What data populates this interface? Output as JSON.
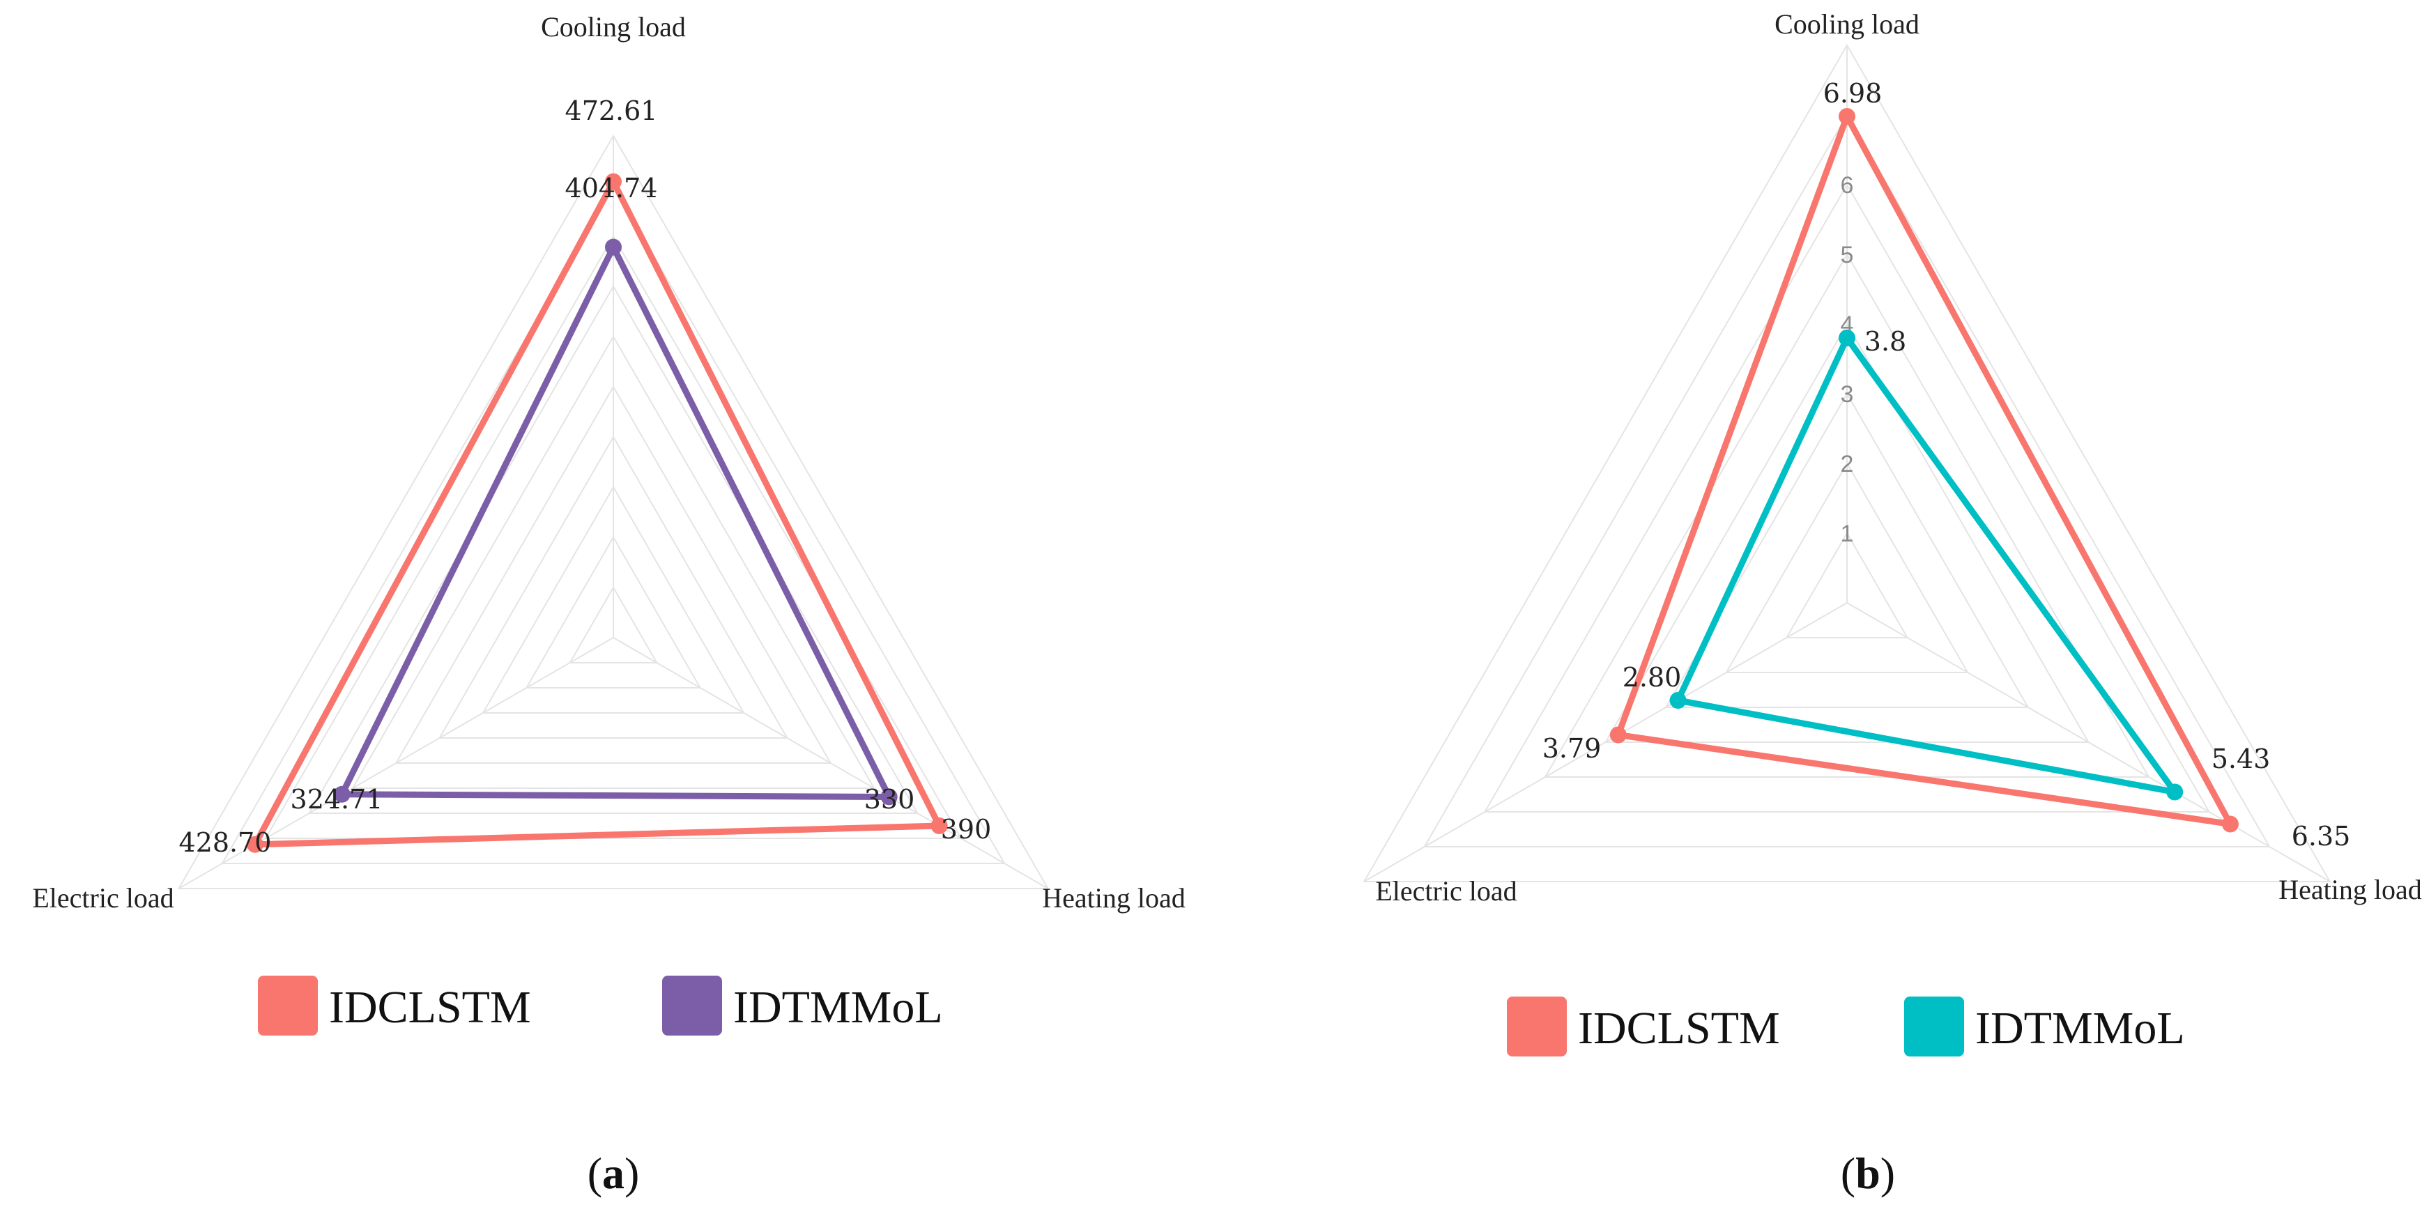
{
  "chart_data": [
    {
      "type": "radar",
      "panel_label": "a",
      "axes": [
        "Cooling load",
        "Heating load",
        "Electric load"
      ],
      "ticks": [],
      "series": [
        {
          "name": "IDCLSTM",
          "color": "#f8766d",
          "values": [
            472.61,
            390,
            428.7
          ],
          "labels": [
            "472.61",
            "390",
            "428.70"
          ]
        },
        {
          "name": "IDTMMoL",
          "color": "#7b5ea7",
          "values": [
            404.74,
            330,
            324.71
          ],
          "labels": [
            "404.74",
            "330",
            "324.71"
          ]
        }
      ],
      "legend_position": "bottom",
      "grid": true
    },
    {
      "type": "radar",
      "panel_label": "b",
      "axes": [
        "Cooling load",
        "Heating load",
        "Electric load"
      ],
      "ticks": [
        "1",
        "2",
        "3",
        "4",
        "5",
        "6"
      ],
      "series": [
        {
          "name": "IDCLSTM",
          "color": "#f8766d",
          "values": [
            6.98,
            6.35,
            3.79
          ],
          "labels": [
            "6.98",
            "6.35",
            "3.79"
          ]
        },
        {
          "name": "IDTMMoL",
          "color": "#00bfc4",
          "values": [
            3.8,
            5.43,
            2.8
          ],
          "labels": [
            "3.8",
            "5.43",
            "2.80"
          ]
        }
      ],
      "legend_position": "bottom",
      "grid": true
    }
  ]
}
